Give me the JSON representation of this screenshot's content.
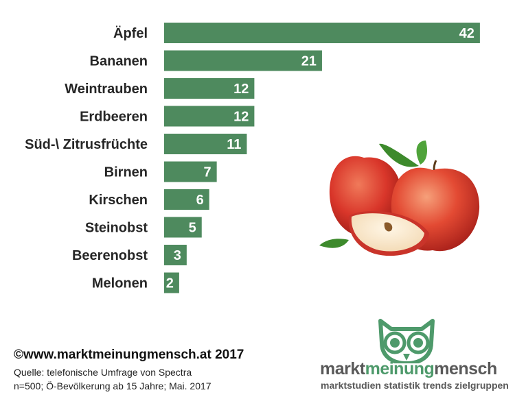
{
  "chart_data": {
    "type": "bar",
    "orientation": "horizontal",
    "categories": [
      "Äpfel",
      "Bananen",
      "Weintrauben",
      "Erdbeeren",
      "Süd-\\ Zitrusfrüchte",
      "Birnen",
      "Kirschen",
      "Steinobst",
      "Beerenobst",
      "Melonen"
    ],
    "values": [
      42,
      21,
      12,
      12,
      11,
      7,
      6,
      5,
      3,
      2
    ],
    "data_labels": true,
    "bar_color": "#4e8a5e",
    "grid": false,
    "legend": "none"
  },
  "footer": {
    "copyright": "©www.marktmeinungmensch.at 2017",
    "source_line1": "Quelle: telefonische Umfrage von Spectra",
    "source_line2": "n=500; Ö-Bevölkerung ab 15 Jahre; Mai. 2017"
  },
  "logo": {
    "word1": "markt",
    "word2": "meinung",
    "word3": "mensch",
    "tagline": "marktstudien  statistik  trends  zielgruppen",
    "color_green": "#4e9a6b",
    "color_grey": "#595959"
  },
  "image": {
    "icon": "apple-illustration"
  }
}
